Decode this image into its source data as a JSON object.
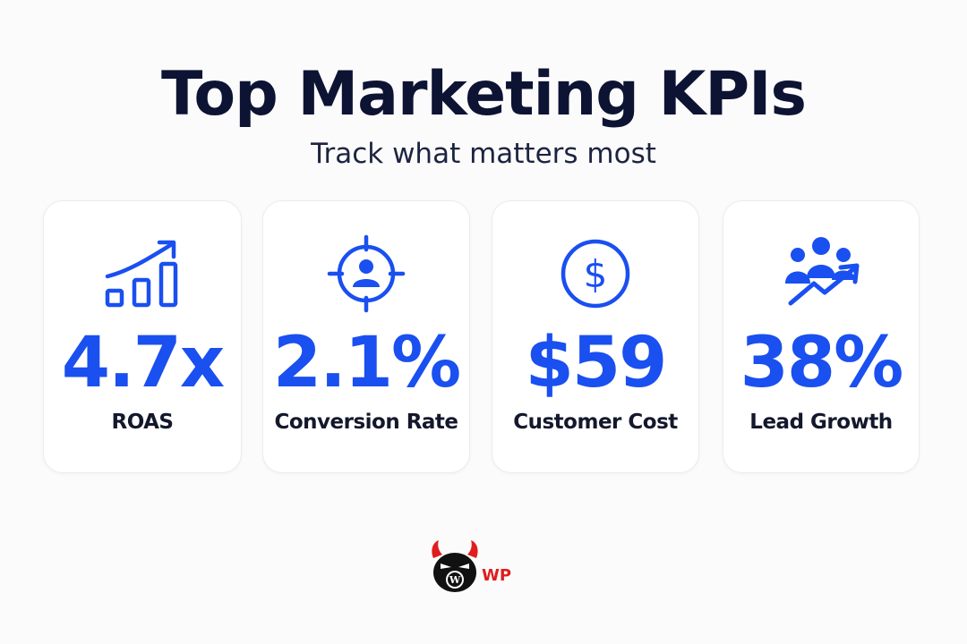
{
  "header": {
    "title": "Top Marketing KPIs",
    "subtitle": "Track what matters most"
  },
  "kpis": [
    {
      "value": "4.7x",
      "label": "ROAS",
      "icon": "bar-chart-growth-icon"
    },
    {
      "value": "2.1%",
      "label": "Conversion Rate",
      "icon": "target-person-icon"
    },
    {
      "value": "$59",
      "label": "Customer Cost",
      "icon": "dollar-circle-icon"
    },
    {
      "value": "38%",
      "label": "Lead Growth",
      "icon": "group-growth-icon"
    }
  ],
  "brand": {
    "logo_text": "WP",
    "logo_icon": "devil-mascot-logo",
    "accent_color": "#1a4ff0",
    "logo_color": "#e11d1d"
  }
}
